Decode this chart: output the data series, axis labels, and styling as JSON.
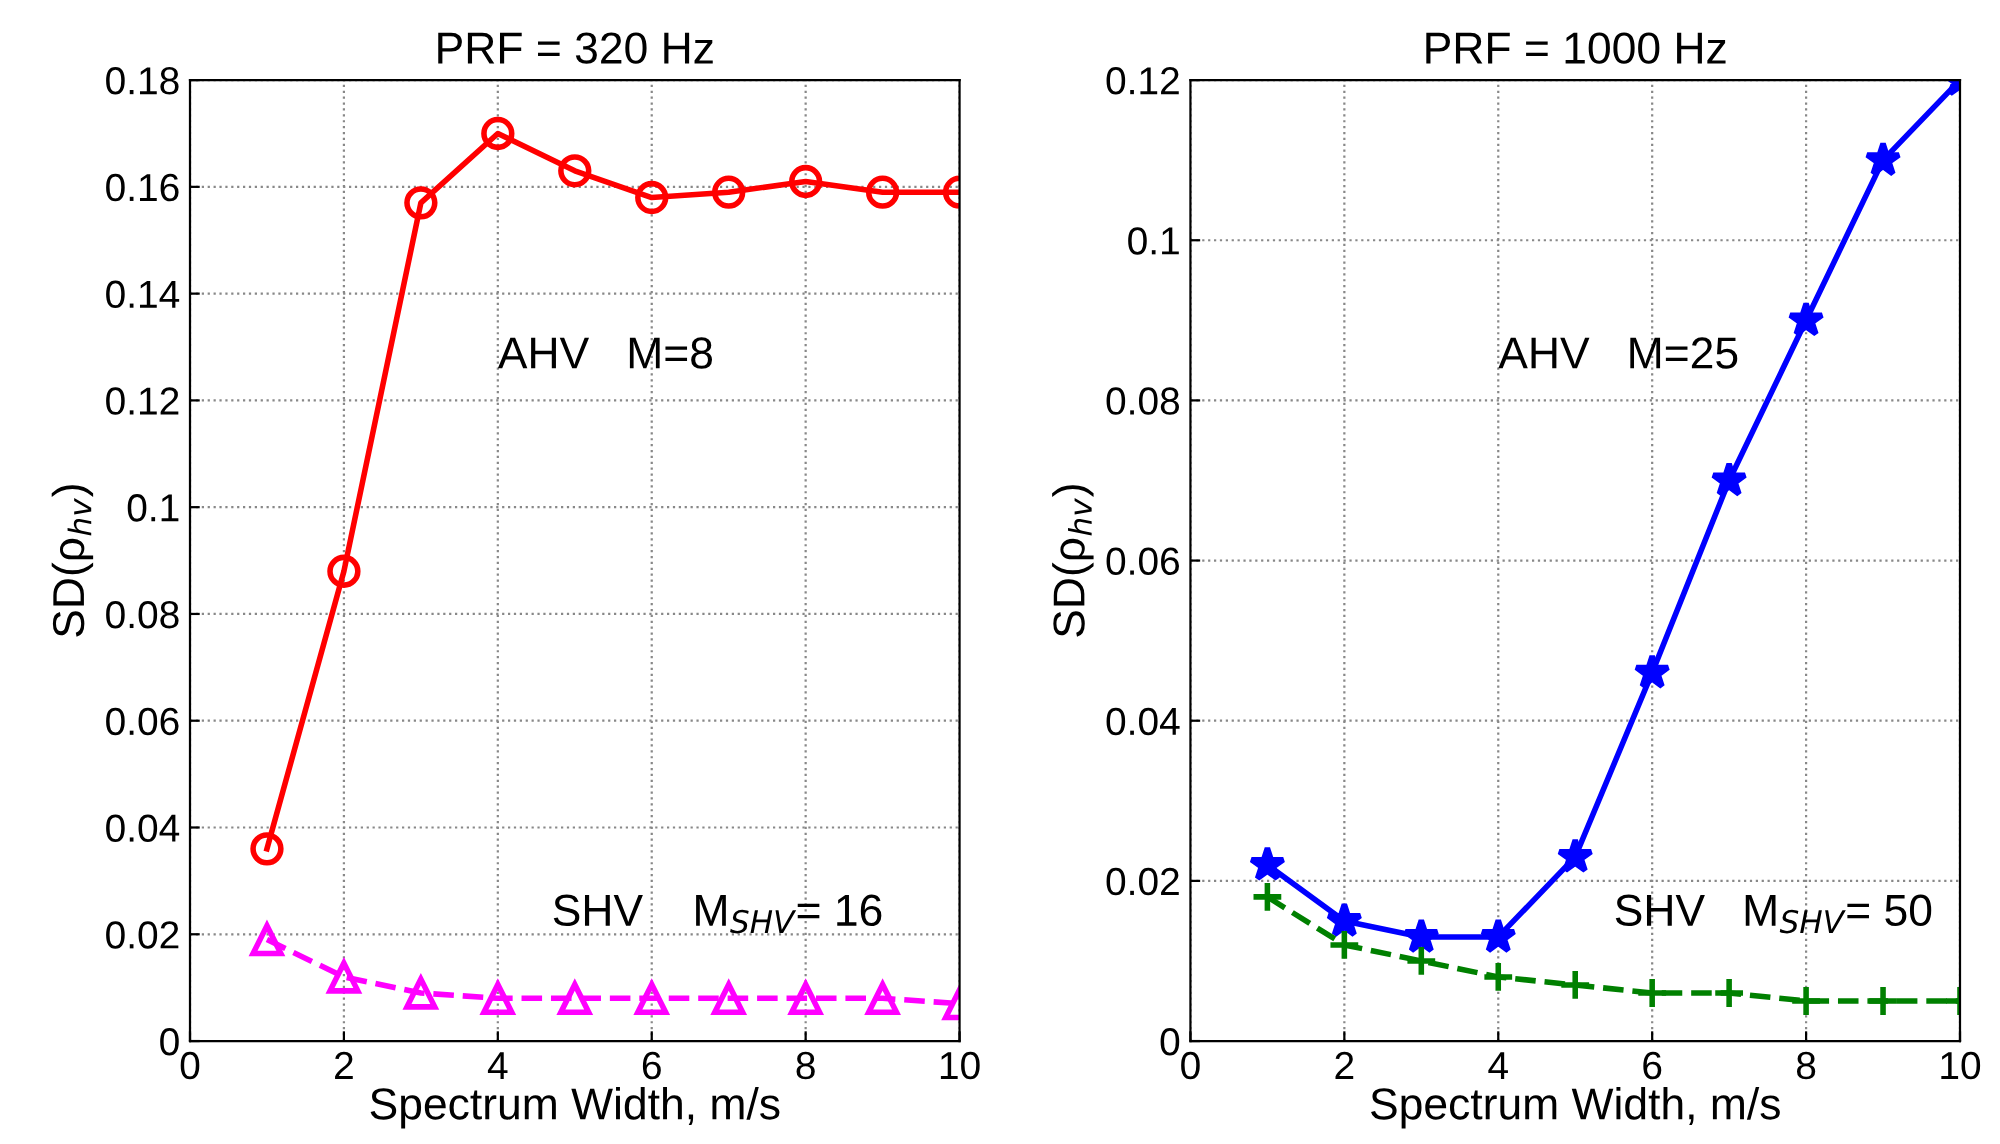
{
  "chart_data": [
    {
      "type": "line",
      "title": "PRF = 320 Hz",
      "xlabel": "Spectrum Width, m/s",
      "ylabel": "SD(ρ$_{hv}$)",
      "x": [
        1,
        2,
        3,
        4,
        5,
        6,
        7,
        8,
        9,
        10
      ],
      "xlim": [
        0,
        10
      ],
      "xticks": [
        0,
        2,
        4,
        6,
        8,
        10
      ],
      "ylim": [
        0,
        0.18
      ],
      "yticks": [
        0,
        0.02,
        0.04,
        0.06,
        0.08,
        0.1,
        0.12,
        0.14,
        0.16,
        0.18
      ],
      "grid": true,
      "annotations": [
        "AHV   M=8",
        "SHV    M$_{SHV}$= 16"
      ],
      "series": [
        {
          "color": "#ff0000",
          "marker": "circle",
          "line_style": "solid",
          "values": [
            0.036,
            0.088,
            0.157,
            0.17,
            0.163,
            0.158,
            0.159,
            0.161,
            0.159,
            0.159
          ]
        },
        {
          "color": "#ff00ff",
          "marker": "triangle",
          "line_style": "dashed",
          "values": [
            0.019,
            0.012,
            0.009,
            0.008,
            0.008,
            0.008,
            0.008,
            0.008,
            0.008,
            0.007
          ]
        }
      ]
    },
    {
      "type": "line",
      "title": "PRF = 1000 Hz",
      "xlabel": "Spectrum Width, m/s",
      "ylabel": "SD(ρ$_{hv}$)",
      "x": [
        1,
        2,
        3,
        4,
        5,
        6,
        7,
        8,
        9,
        10
      ],
      "xlim": [
        0,
        10
      ],
      "xticks": [
        0,
        2,
        4,
        6,
        8,
        10
      ],
      "ylim": [
        0,
        0.12
      ],
      "yticks": [
        0,
        0.02,
        0.04,
        0.06,
        0.08,
        0.1,
        0.12
      ],
      "grid": true,
      "annotations": [
        "AHV   M=25",
        "SHV   M$_{SHV}$= 50"
      ],
      "series": [
        {
          "color": "#0000ff",
          "marker": "star",
          "line_style": "solid",
          "values": [
            0.022,
            0.015,
            0.013,
            0.013,
            0.023,
            0.046,
            0.07,
            0.09,
            0.11,
            0.12
          ]
        },
        {
          "color": "#008000",
          "marker": "cross",
          "line_style": "dashed",
          "values": [
            0.018,
            0.012,
            0.01,
            0.008,
            0.007,
            0.006,
            0.006,
            0.005,
            0.005,
            0.005
          ]
        }
      ]
    }
  ]
}
